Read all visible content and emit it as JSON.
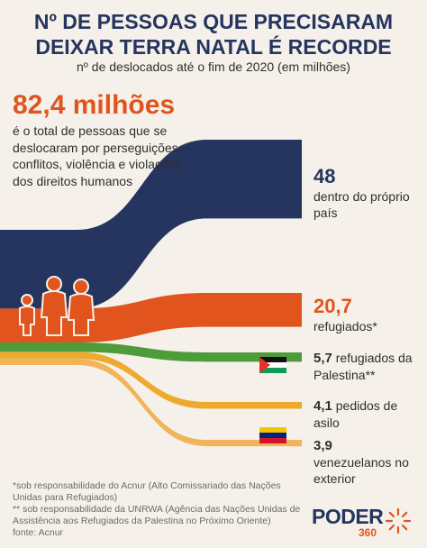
{
  "header": {
    "title_line1": "Nº DE PESSOAS QUE PRECISARAM",
    "title_line2": "DEIXAR TERRA NATAL É RECORDE",
    "subtitle": "nº de deslocados até o fim de 2020 (em milhões)"
  },
  "total": {
    "value": "82,4 milhões",
    "description": "é o total de pessoas que se deslocaram por perseguições, conflitos, violência e violações dos direitos humanos"
  },
  "labels": [
    {
      "value": "48",
      "text": "dentro do próprio país"
    },
    {
      "value": "20,7",
      "text": "refugiados*"
    },
    {
      "value": "5,7",
      "text": "refugiados da Palestina**"
    },
    {
      "value": "4,1",
      "text": "pedidos de asilo"
    },
    {
      "value": "3,9",
      "text": "venezuelanos no exterior"
    }
  ],
  "notes": {
    "note1": "*sob responsabilidade do Acnur (Alto Comissariado das Nações Unidas para Refugiados)",
    "note2": "** sob responsabilidade da UNRWA (Agência das Nações Unidas de Assistência aos Refugiados da Palestina no Próximo Oriente)",
    "source": "fonte: Acnur"
  },
  "logo": {
    "name": "PODER",
    "suffix": "360"
  },
  "colors": {
    "navy": "#25355f",
    "orange": "#e1541e",
    "green": "#4e9b3a",
    "yellow": "#eeaa2f",
    "light_orange": "#f2b45a"
  },
  "icons": [
    "family-silhouette-icon",
    "palestine-flag-icon",
    "venezuela-flag-icon",
    "sun-rays-icon"
  ],
  "chart_data": {
    "type": "sankey",
    "title": "Nº DE PESSOAS QUE PRECISARAM DEIXAR TERRA NATAL É RECORDE",
    "unit": "milhões",
    "total": 82.4,
    "categories": [
      "dentro do próprio país",
      "refugiados*",
      "refugiados da Palestina**",
      "pedidos de asilo",
      "venezuelanos no exterior"
    ],
    "values": [
      48,
      20.7,
      5.7,
      4.1,
      3.9
    ]
  }
}
